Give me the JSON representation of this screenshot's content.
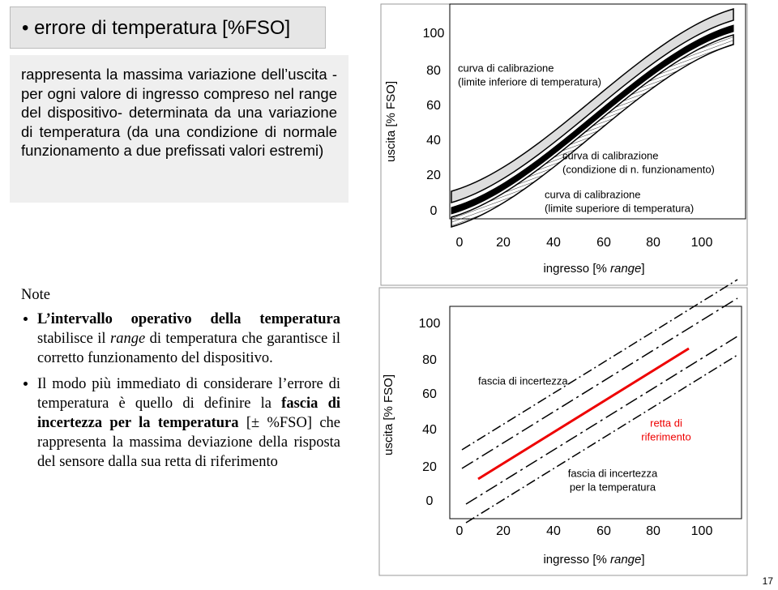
{
  "header": {
    "title": "errore di temperatura [%FSO]"
  },
  "definition": "rappresenta la massima variazione dell’uscita -per ogni valore di ingresso compreso nel range del dispositivo- determinata da una variazione di temperatura (da una condizione di normale funzionamento a due prefissati valori estremi)",
  "figure_1": {
    "y_axis_label": "uscita [% FSO]",
    "x_axis_label": [
      "ingresso [% ",
      "range",
      "]"
    ],
    "yticks": [
      100,
      80,
      60,
      40,
      20,
      0
    ],
    "xticks": [
      0,
      20,
      40,
      60,
      80,
      100
    ],
    "annotations": [
      [
        "curva di calibrazione",
        "(limite inferiore di temperatura)"
      ],
      [
        "curva di calibrazione",
        "(condizione di n. funzionamento)"
      ],
      [
        "curva di calibrazione",
        "(limite superiore di temperatura)"
      ]
    ]
  },
  "notes": {
    "title": "Note",
    "items": [
      [
        "L’intervallo operativo della temperatura",
        " stabilisce il ",
        "range",
        " di temperatura che garantisce il corretto funzionamento del dispositivo."
      ],
      [
        "Il modo più immediato di considerare l’errore di temperatura è quello di definire la ",
        "fascia di incertezza per la temperatura",
        " [± %FSO] che rappresenta la massima deviazione della risposta del sensore dalla sua retta di riferimento"
      ]
    ]
  },
  "figure_2": {
    "y_axis_label": "uscita [% FSO]",
    "x_axis_label": [
      "ingresso [% ",
      "range",
      "]"
    ],
    "yticks": [
      100,
      80,
      60,
      40,
      20,
      0
    ],
    "xticks": [
      0,
      20,
      40,
      60,
      80,
      100
    ],
    "annotations": [
      [
        "fascia di incertezza"
      ],
      [
        "retta di",
        "riferimento"
      ],
      [
        "fascia di incertezza",
        "per la temperatura"
      ]
    ]
  },
  "page_number": "17"
}
